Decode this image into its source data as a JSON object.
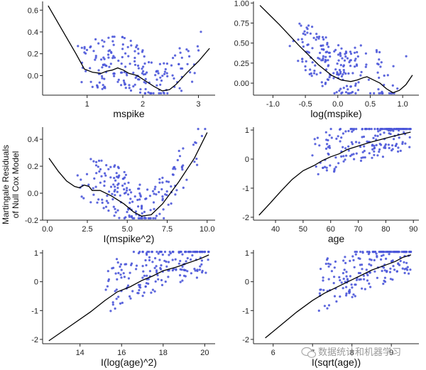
{
  "figure": {
    "ylabel_line1": "Martingale Residuals",
    "ylabel_line2": "of Null Cox Model",
    "watermark": "数据统计和机器学习",
    "point_color": "#4b57d9",
    "line_color": "#000000"
  },
  "chart_data": [
    {
      "type": "scatter",
      "xlabel": "mspike",
      "xlim": [
        0.2,
        3.3
      ],
      "ylim": [
        -0.18,
        0.68
      ],
      "xticks": [
        1,
        2,
        3
      ],
      "yticks": [
        0.0,
        0.2,
        0.4,
        0.6
      ],
      "xtick_labels": [
        "1",
        "2",
        "3"
      ],
      "ytick_labels": [
        "0.0",
        "0.2",
        "0.4",
        "0.6"
      ],
      "smooth": [
        [
          0.3,
          0.64
        ],
        [
          0.55,
          0.42
        ],
        [
          0.8,
          0.2
        ],
        [
          0.95,
          0.06
        ],
        [
          1.1,
          0.03
        ],
        [
          1.25,
          0.02
        ],
        [
          1.35,
          0.04
        ],
        [
          1.45,
          0.05
        ],
        [
          1.55,
          0.07
        ],
        [
          1.65,
          0.05
        ],
        [
          1.75,
          0.02
        ],
        [
          1.9,
          0.0
        ],
        [
          2.05,
          -0.05
        ],
        [
          2.2,
          -0.1
        ],
        [
          2.35,
          -0.14
        ],
        [
          2.48,
          -0.13
        ],
        [
          2.6,
          -0.08
        ],
        [
          2.8,
          0.03
        ],
        [
          3.0,
          0.13
        ],
        [
          3.2,
          0.25
        ]
      ]
    },
    {
      "type": "scatter",
      "xlabel": "log(mspike)",
      "xlim": [
        -1.3,
        1.25
      ],
      "ylim": [
        -0.15,
        1.02
      ],
      "xticks": [
        -1.0,
        -0.5,
        0.0,
        0.5,
        1.0
      ],
      "yticks": [
        0.0,
        0.25,
        0.5,
        0.75,
        1.0
      ],
      "xtick_labels": [
        "-1.0",
        "-0.5",
        "0.0",
        "0.5",
        "1.0"
      ],
      "ytick_labels": [
        "0.00",
        "0.25",
        "0.50",
        "0.75",
        "1.00"
      ],
      "smooth": [
        [
          -1.2,
          0.97
        ],
        [
          -0.9,
          0.73
        ],
        [
          -0.6,
          0.47
        ],
        [
          -0.3,
          0.23
        ],
        [
          -0.1,
          0.1
        ],
        [
          0.05,
          0.04
        ],
        [
          0.2,
          0.02
        ],
        [
          0.3,
          0.04
        ],
        [
          0.4,
          0.07
        ],
        [
          0.45,
          0.08
        ],
        [
          0.55,
          0.04
        ],
        [
          0.65,
          0.0
        ],
        [
          0.75,
          -0.07
        ],
        [
          0.85,
          -0.12
        ],
        [
          0.95,
          -0.09
        ],
        [
          1.05,
          -0.02
        ],
        [
          1.15,
          0.1
        ]
      ]
    },
    {
      "type": "scatter",
      "xlabel": "I(mspike^2)",
      "xlim": [
        -0.3,
        10.5
      ],
      "ylim": [
        -0.2,
        0.49
      ],
      "xticks": [
        0.0,
        2.5,
        5.0,
        7.5,
        10.0
      ],
      "yticks": [
        -0.2,
        0.0,
        0.2,
        0.4
      ],
      "xtick_labels": [
        "0.0",
        "2.5",
        "5.0",
        "7.5",
        "10.0"
      ],
      "ytick_labels": [
        "-0.2",
        "0.0",
        "0.2",
        "0.4"
      ],
      "smooth": [
        [
          0.1,
          0.26
        ],
        [
          0.7,
          0.16
        ],
        [
          1.2,
          0.09
        ],
        [
          1.7,
          0.05
        ],
        [
          2.0,
          0.04
        ],
        [
          2.3,
          0.06
        ],
        [
          2.6,
          0.05
        ],
        [
          2.8,
          0.02
        ],
        [
          3.3,
          0.02
        ],
        [
          4.0,
          -0.02
        ],
        [
          4.8,
          -0.08
        ],
        [
          5.4,
          -0.14
        ],
        [
          5.9,
          -0.17
        ],
        [
          6.5,
          -0.16
        ],
        [
          7.2,
          -0.08
        ],
        [
          8.2,
          0.08
        ],
        [
          9.2,
          0.26
        ],
        [
          10.0,
          0.45
        ]
      ]
    },
    {
      "type": "scatter",
      "xlabel": "age",
      "xlim": [
        32,
        92
      ],
      "ylim": [
        -2.1,
        1.1
      ],
      "xticks": [
        40,
        50,
        60,
        70,
        80,
        90
      ],
      "yticks": [
        -2,
        -1,
        0,
        1
      ],
      "xtick_labels": [
        "40",
        "50",
        "60",
        "70",
        "80",
        "90"
      ],
      "ytick_labels": [
        "-2",
        "-1",
        "0",
        "1"
      ],
      "smooth": [
        [
          34,
          -1.93
        ],
        [
          38,
          -1.52
        ],
        [
          42,
          -1.1
        ],
        [
          46,
          -0.7
        ],
        [
          50,
          -0.4
        ],
        [
          54,
          -0.22
        ],
        [
          57,
          -0.05
        ],
        [
          60,
          0.08
        ],
        [
          63,
          0.18
        ],
        [
          66,
          0.33
        ],
        [
          70,
          0.45
        ],
        [
          74,
          0.57
        ],
        [
          78,
          0.67
        ],
        [
          82,
          0.77
        ],
        [
          86,
          0.86
        ],
        [
          89,
          0.93
        ]
      ]
    },
    {
      "type": "scatter",
      "xlabel": "I(log(age)^2)",
      "xlim": [
        12.2,
        20.5
      ],
      "ylim": [
        -2.15,
        1.1
      ],
      "xticks": [
        14,
        16,
        18,
        20
      ],
      "yticks": [
        -2,
        -1,
        0,
        1
      ],
      "xtick_labels": [
        "14",
        "16",
        "18",
        "20"
      ],
      "ytick_labels": [
        "-2",
        "-1",
        "0",
        "1"
      ],
      "smooth": [
        [
          12.5,
          -2.05
        ],
        [
          13.5,
          -1.55
        ],
        [
          14.5,
          -1.05
        ],
        [
          15.2,
          -0.65
        ],
        [
          15.8,
          -0.35
        ],
        [
          16.4,
          -0.18
        ],
        [
          17.0,
          0.05
        ],
        [
          17.5,
          0.2
        ],
        [
          18.0,
          0.38
        ],
        [
          18.6,
          0.5
        ],
        [
          19.2,
          0.65
        ],
        [
          19.8,
          0.8
        ],
        [
          20.2,
          0.93
        ]
      ]
    },
    {
      "type": "scatter",
      "xlabel": "I(sqrt(age))",
      "xlim": [
        5.5,
        9.7
      ],
      "ylim": [
        -2.15,
        1.1
      ],
      "xticks": [
        6,
        7,
        8,
        9
      ],
      "yticks": [
        -2,
        -1,
        0,
        1
      ],
      "xtick_labels": [
        "6",
        "7",
        "8",
        "9"
      ],
      "ytick_labels": [
        "-2",
        "-1",
        "0",
        "1"
      ],
      "smooth": [
        [
          5.8,
          -1.95
        ],
        [
          6.2,
          -1.5
        ],
        [
          6.6,
          -1.05
        ],
        [
          7.0,
          -0.65
        ],
        [
          7.3,
          -0.4
        ],
        [
          7.6,
          -0.2
        ],
        [
          7.9,
          0.0
        ],
        [
          8.2,
          0.2
        ],
        [
          8.5,
          0.4
        ],
        [
          8.8,
          0.55
        ],
        [
          9.1,
          0.7
        ],
        [
          9.3,
          0.85
        ],
        [
          9.5,
          0.93
        ]
      ]
    }
  ]
}
